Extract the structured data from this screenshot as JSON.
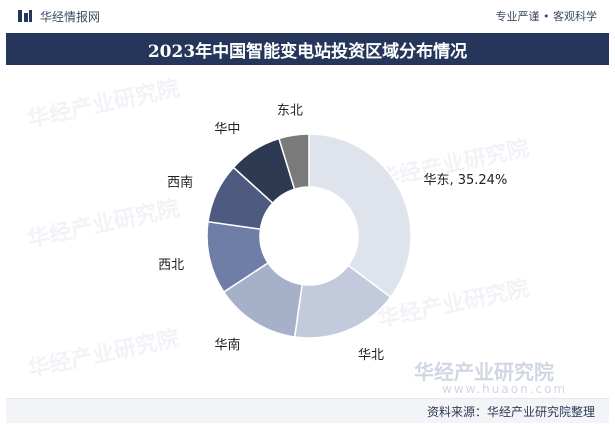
{
  "header": {
    "brand": "华经情报网",
    "slogan": "专业严谨 • 客观科学"
  },
  "title": "2023年中国智能变电站投资区域分布情况",
  "watermark": {
    "text": "华经产业研究院",
    "url": "www.huaon.com"
  },
  "footer": {
    "source": "资料来源：华经产业研究院整理"
  },
  "colors": {
    "title_bg": "#25365a",
    "brand_blue": "#25365a"
  },
  "chart_data": {
    "type": "pie",
    "style": "donut",
    "categories": [
      "华东",
      "华北",
      "华南",
      "西北",
      "西南",
      "华中",
      "东北"
    ],
    "values": [
      35.24,
      17.0,
      13.5,
      11.5,
      9.5,
      8.5,
      4.76
    ],
    "data_labels": [
      "华东, 35.24%",
      "华北",
      "华南",
      "西北",
      "西南",
      "华中",
      "东北"
    ],
    "colors": [
      "#dfe3ec",
      "#c3cadb",
      "#a6b0c8",
      "#6f7ea6",
      "#4d5b80",
      "#2e3a52",
      "#7a7a7a"
    ],
    "start_angle_deg": 0,
    "direction": "clockwise",
    "legend": "none"
  }
}
